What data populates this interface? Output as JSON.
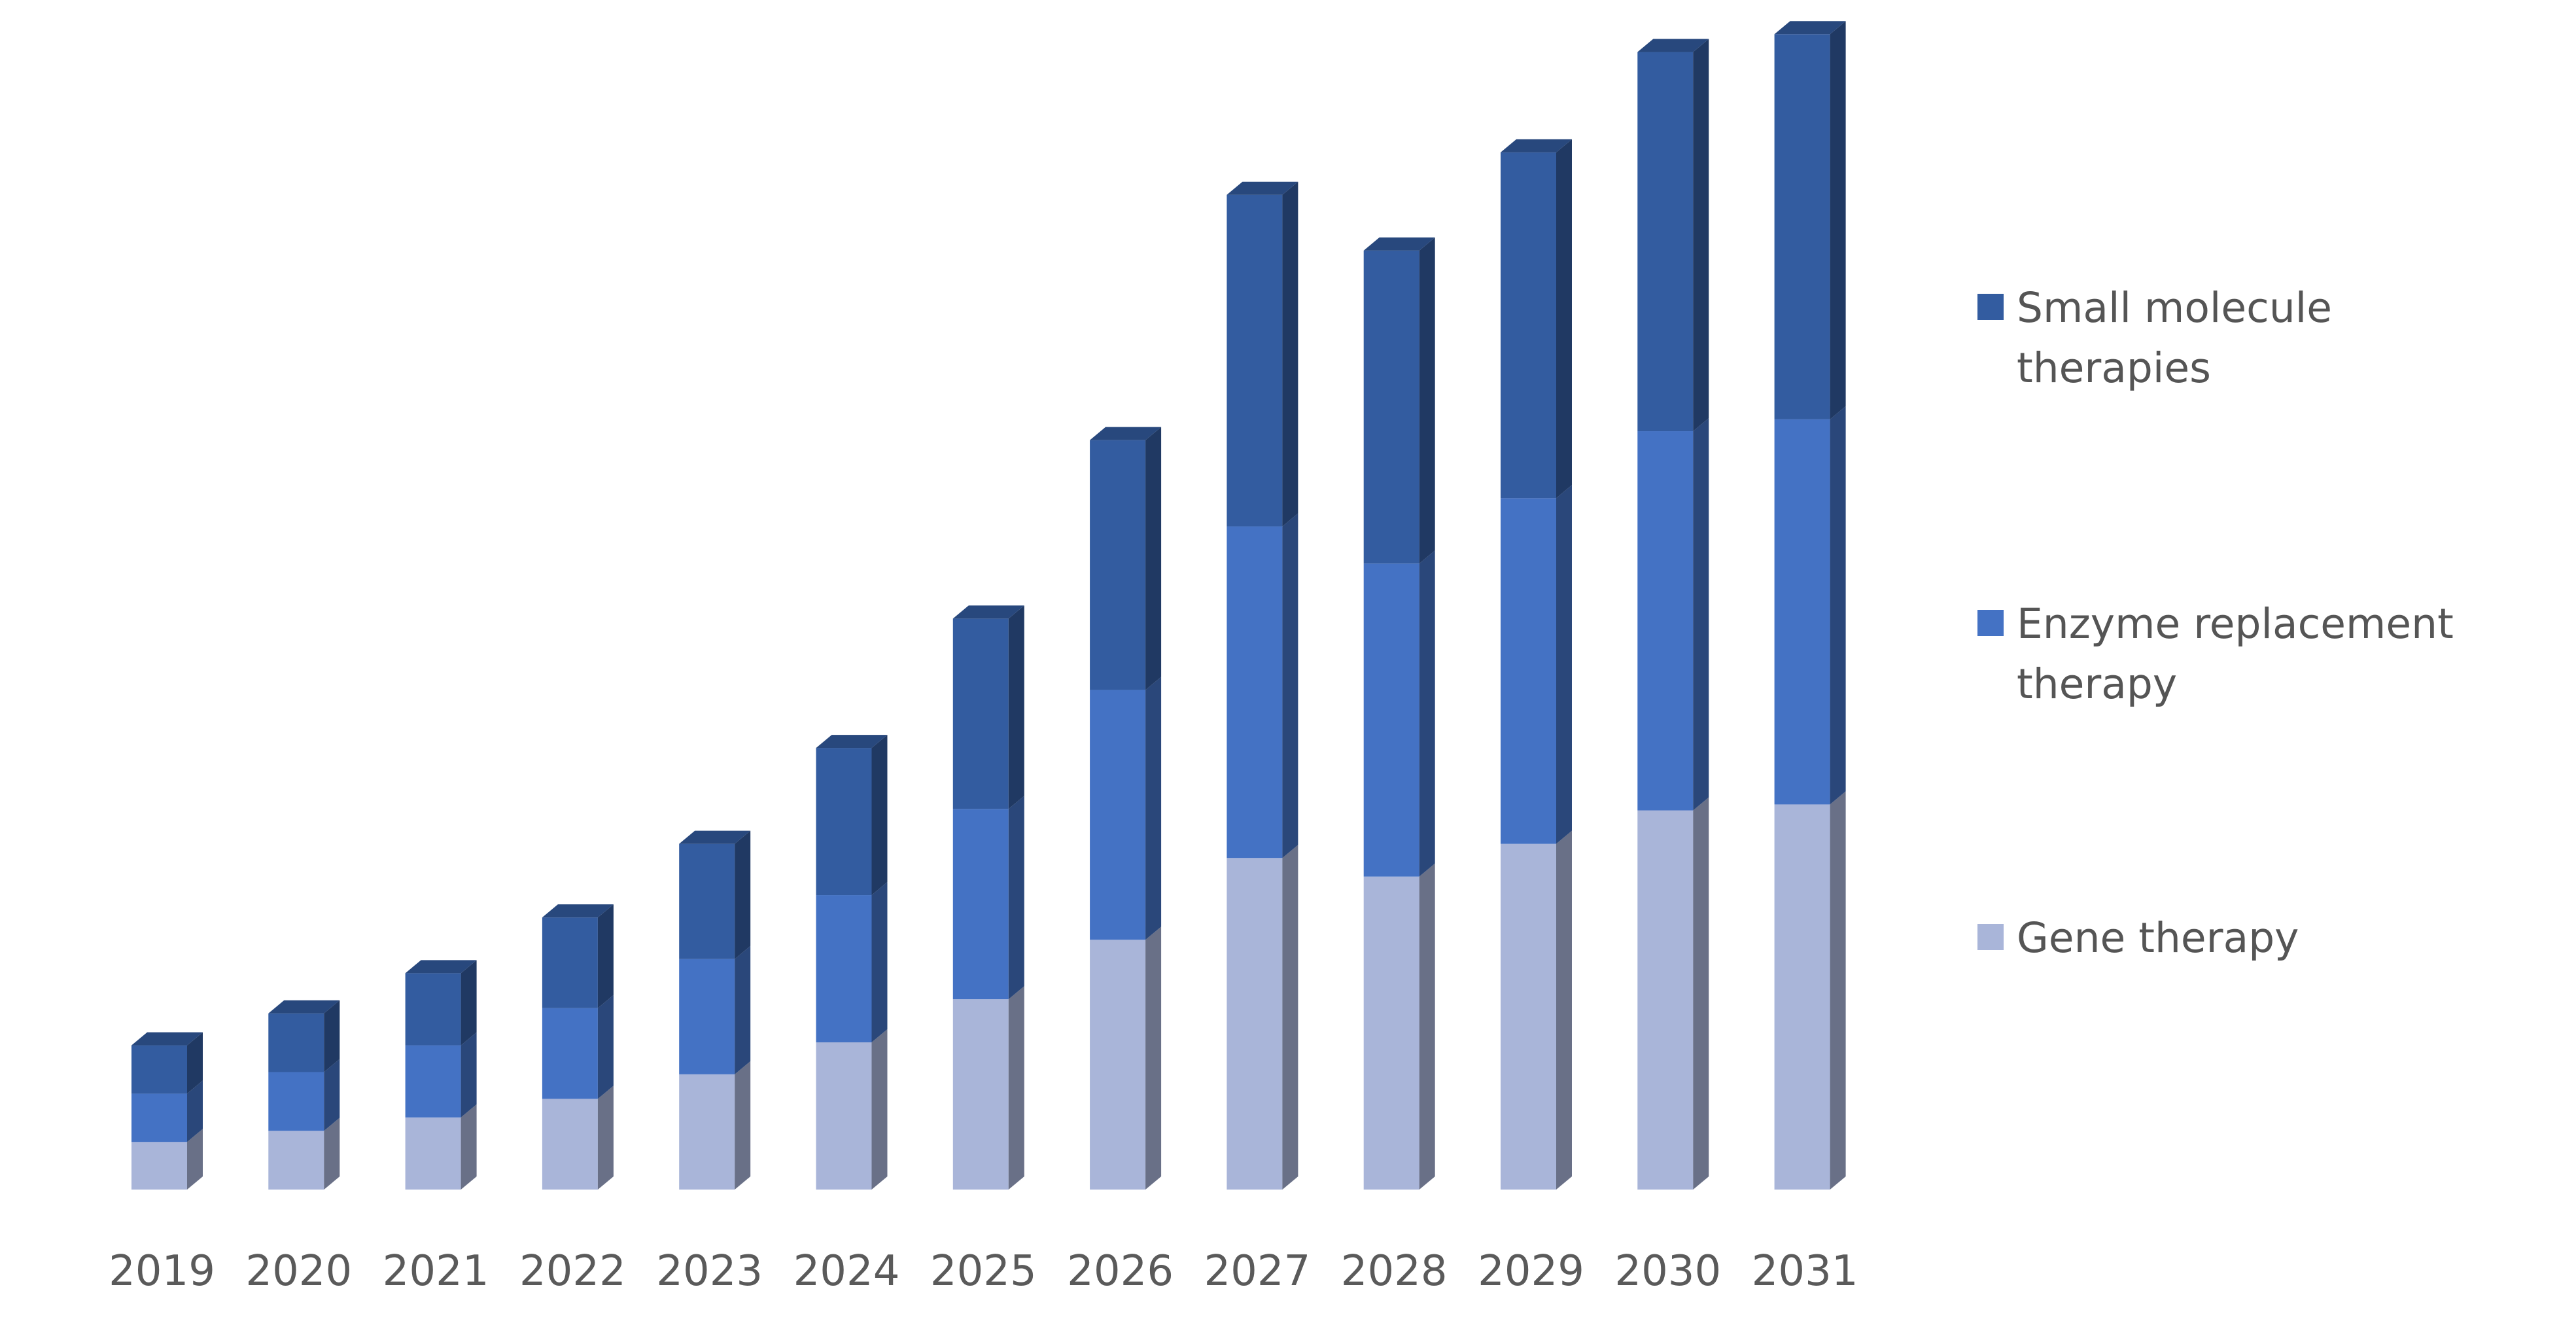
{
  "chart_data": {
    "type": "bar",
    "stacked": true,
    "style": "3d-column",
    "categories": [
      "2019",
      "2020",
      "2021",
      "2022",
      "2023",
      "2024",
      "2025",
      "2026",
      "2027",
      "2028",
      "2029",
      "2030",
      "2031"
    ],
    "series": [
      {
        "name": "Gene therapy",
        "color": "#a9b5d9",
        "values": [
          64,
          79,
          97,
          122,
          155,
          198,
          256,
          336,
          446,
          421,
          465,
          510,
          518
        ]
      },
      {
        "name": "Enzyme replacement therapy",
        "color": "#4472c4",
        "values": [
          65,
          79,
          97,
          122,
          155,
          198,
          256,
          336,
          446,
          421,
          465,
          510,
          518
        ]
      },
      {
        "name": "Small molecule therapies",
        "color": "#335ca0",
        "values": [
          65,
          79,
          97,
          122,
          155,
          198,
          256,
          336,
          446,
          421,
          465,
          510,
          518
        ]
      }
    ],
    "legend_lines": [
      [
        "Small molecule",
        "therapies"
      ],
      [
        "Enzyme replacement",
        "therapy"
      ],
      [
        "Gene therapy"
      ]
    ],
    "legend_placement": "right",
    "ylim": [
      0,
      1600
    ],
    "grid": false,
    "title": "",
    "xlabel": "",
    "ylabel": ""
  }
}
